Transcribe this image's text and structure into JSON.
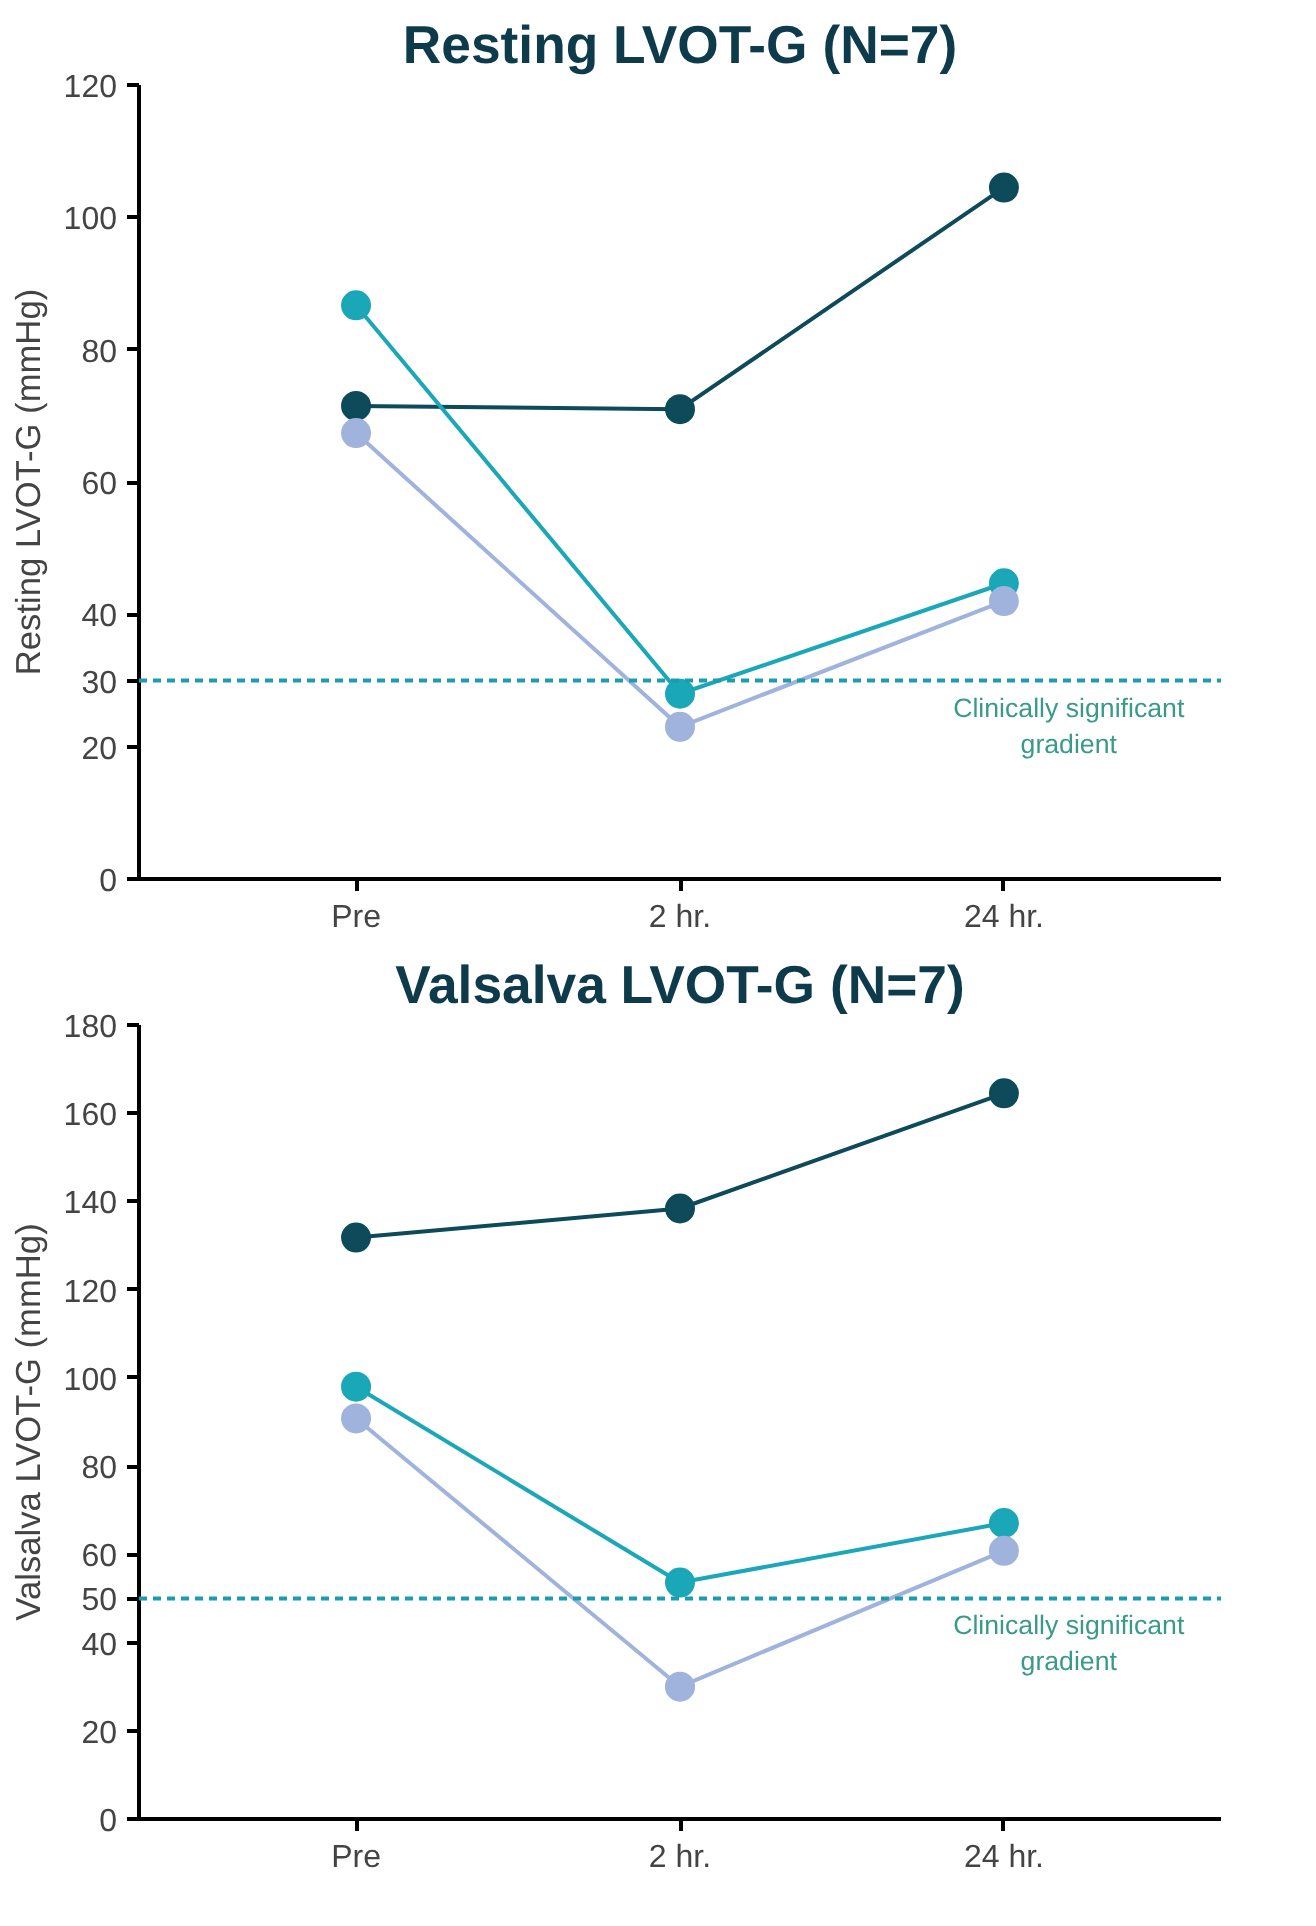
{
  "chart_data": [
    {
      "type": "line",
      "title": "Resting LVOT-G (N=7)",
      "ylabel": "Resting LVOT-G (mmHg)",
      "categories": [
        "Pre",
        "2 hr.",
        "24 hr."
      ],
      "ylim": [
        0,
        120
      ],
      "yticks": [
        0,
        20,
        30,
        40,
        60,
        80,
        100,
        120
      ],
      "marker": "circle",
      "line_style": "solid",
      "grid": false,
      "series": [
        {
          "color": "#0d4a5a",
          "values": [
            71.5,
            71,
            104.5
          ]
        },
        {
          "color": "#1aa7b8",
          "values": [
            86.7,
            28,
            44.7
          ]
        },
        {
          "color": "#9fb3dd",
          "values": [
            67.4,
            23,
            42
          ]
        }
      ],
      "ref_lines": [
        {
          "axis": "y",
          "value": 30,
          "label": "Clinically significant\ngradient",
          "color": "#1a9db0",
          "line_style": "dashed"
        }
      ]
    },
    {
      "type": "line",
      "title": "Valsalva LVOT-G (N=7)",
      "ylabel": "Valsalva LVOT-G (mmHg)",
      "categories": [
        "Pre",
        "2 hr.",
        "24 hr."
      ],
      "ylim": [
        0,
        180
      ],
      "yticks": [
        0,
        20,
        40,
        50,
        60,
        80,
        100,
        120,
        140,
        160,
        180
      ],
      "marker": "circle",
      "line_style": "solid",
      "grid": false,
      "series": [
        {
          "color": "#0d4a5a",
          "values": [
            131.8,
            138.4,
            164.5
          ]
        },
        {
          "color": "#1aa7b8",
          "values": [
            98,
            53.6,
            67.1
          ]
        },
        {
          "color": "#9fb3dd",
          "values": [
            90.8,
            30,
            60.8
          ]
        }
      ],
      "ref_lines": [
        {
          "axis": "y",
          "value": 50,
          "label": "Clinically significant\ngradient",
          "color": "#1a9db0",
          "line_style": "dashed"
        }
      ]
    }
  ]
}
